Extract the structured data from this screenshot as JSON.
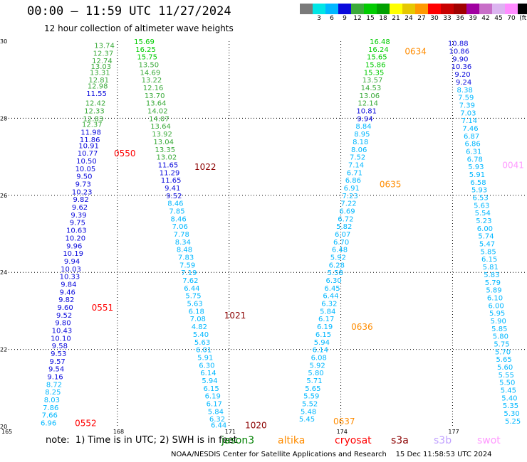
{
  "header": {
    "title": "00:00 – 11:59 UTC 11/27/2024",
    "subtitle": "12 hour collection of altimeter wave heights"
  },
  "colorbar": {
    "colors": [
      "#7a7a7a",
      "#00e5e5",
      "#00b7ff",
      "#0a0adc",
      "#3aaa3a",
      "#00cc00",
      "#00a000",
      "#ffff00",
      "#e6c800",
      "#ff9900",
      "#ff0000",
      "#c80000",
      "#a00000",
      "#a000a0",
      "#c86ec8",
      "#dcb4f0",
      "#ff8cff",
      "#000000"
    ],
    "labels": [
      "",
      "3",
      "6",
      "9",
      "12",
      "15",
      "18",
      "21",
      "24",
      "27",
      "30",
      "33",
      "36",
      "39",
      "42",
      "45",
      "70",
      "(ft)"
    ]
  },
  "notes": {
    "text": "note:  1) Time is in UTC; 2) SWH is in feet"
  },
  "satellites": [
    {
      "name": "jason3",
      "color": "#008000"
    },
    {
      "name": "altika",
      "color": "#ff8c00"
    },
    {
      "name": "cryosat",
      "color": "#ff0000"
    },
    {
      "name": "s3a",
      "color": "#8b0000"
    },
    {
      "name": "s3b",
      "color": "#c0a0ff"
    },
    {
      "name": "swot",
      "color": "#ff99ff"
    }
  ],
  "footer": {
    "text": "NOAA/NESDIS Center for Satellite Applications and Research    15 Dec 11:58:53 UTC 2024"
  },
  "chart_data": {
    "type": "scatter",
    "title": "",
    "xlabel": "",
    "ylabel": "",
    "xlim": [
      165,
      179
    ],
    "ylim": [
      20,
      30
    ],
    "x_ticks": [
      165,
      168,
      171,
      174,
      177
    ],
    "y_ticks": [
      20,
      22,
      24,
      26,
      28,
      30
    ],
    "grid": true,
    "value_color_scale": [
      {
        "max": 9,
        "color": "#00b7ff"
      },
      {
        "max": 12,
        "color": "#0a0adc"
      },
      {
        "max": 15,
        "color": "#3aaa3a"
      },
      {
        "max": 18,
        "color": "#00cc00"
      },
      {
        "max": 21,
        "color": "#00a000"
      }
    ],
    "tracks": [
      {
        "lat": [
          29.9,
          29.7,
          29.5,
          29.35,
          29.2,
          29.0,
          28.85,
          28.65,
          28.4,
          28.2,
          28.0,
          27.85,
          27.65,
          27.45,
          27.3,
          27.1,
          26.9,
          26.7,
          26.5,
          26.3,
          26.1,
          25.9,
          25.7,
          25.5,
          25.3,
          25.1,
          24.9,
          24.7,
          24.5,
          24.3,
          24.1,
          23.9,
          23.7,
          23.5,
          23.3,
          23.1,
          22.9,
          22.7,
          22.5,
          22.3,
          22.1,
          21.9,
          21.7,
          21.5,
          21.3,
          21.1,
          20.9,
          20.7,
          20.5,
          20.3,
          20.1
        ],
        "lon": [
          167.65,
          167.62,
          167.59,
          167.56,
          167.53,
          167.5,
          167.47,
          167.44,
          167.41,
          167.38,
          167.35,
          167.32,
          167.29,
          167.26,
          167.23,
          167.2,
          167.17,
          167.14,
          167.11,
          167.08,
          167.05,
          167.02,
          166.99,
          166.96,
          166.93,
          166.9,
          166.87,
          166.84,
          166.81,
          166.78,
          166.75,
          166.72,
          166.69,
          166.66,
          166.63,
          166.6,
          166.57,
          166.54,
          166.51,
          166.48,
          166.45,
          166.42,
          166.39,
          166.36,
          166.33,
          166.3,
          166.27,
          166.24,
          166.21,
          166.18,
          166.15
        ],
        "swh": [
          13.74,
          12.37,
          12.74,
          13.03,
          13.31,
          12.81,
          12.98,
          11.55,
          12.42,
          12.33,
          12.83,
          12.37,
          11.98,
          11.86,
          10.91,
          10.77,
          10.5,
          10.05,
          9.5,
          9.73,
          10.23,
          9.82,
          9.62,
          9.39,
          9.75,
          10.63,
          10.2,
          9.96,
          10.19,
          9.94,
          10.03,
          10.33,
          9.84,
          9.46,
          9.82,
          9.6,
          9.52,
          9.8,
          10.43,
          10.1,
          9.58,
          9.53,
          9.57,
          9.54,
          9.16,
          8.72,
          8.25,
          8.03,
          7.86,
          7.66,
          6.96
        ],
        "labels": [
          {
            "text": "0550",
            "lat": 27.1,
            "sat": "cryosat"
          },
          {
            "text": "0551",
            "lat": 23.1,
            "sat": "cryosat"
          },
          {
            "text": "0552",
            "lat": 20.1,
            "sat": "cryosat"
          }
        ]
      },
      {
        "lat": [
          30.0,
          29.8,
          29.6,
          29.4,
          29.2,
          29.0,
          28.8,
          28.6,
          28.4,
          28.2,
          28.0,
          27.8,
          27.6,
          27.4,
          27.2,
          27.0,
          26.8,
          26.6,
          26.4,
          26.2,
          26.0,
          25.8,
          25.6,
          25.4,
          25.2,
          25.0,
          24.8,
          24.6,
          24.4,
          24.2,
          24.0,
          23.8,
          23.6,
          23.4,
          23.2,
          23.0,
          22.8,
          22.6,
          22.4,
          22.2,
          22.0,
          21.8,
          21.6,
          21.4,
          21.2,
          21.0,
          20.8,
          20.6,
          20.4,
          20.2,
          20.05
        ],
        "lon": [
          168.72,
          168.76,
          168.8,
          168.84,
          168.88,
          168.92,
          168.96,
          169.0,
          169.04,
          169.08,
          169.12,
          169.16,
          169.2,
          169.24,
          169.28,
          169.32,
          169.36,
          169.4,
          169.44,
          169.48,
          169.52,
          169.56,
          169.6,
          169.64,
          169.68,
          169.72,
          169.76,
          169.8,
          169.84,
          169.88,
          169.92,
          169.96,
          170.0,
          170.04,
          170.08,
          170.12,
          170.16,
          170.2,
          170.24,
          170.28,
          170.32,
          170.36,
          170.4,
          170.44,
          170.48,
          170.52,
          170.56,
          170.6,
          170.64,
          170.68,
          170.72
        ],
        "swh": [
          15.69,
          16.25,
          15.75,
          13.5,
          14.69,
          13.22,
          12.16,
          13.7,
          13.64,
          14.02,
          14.07,
          13.64,
          13.92,
          13.04,
          13.35,
          13.02,
          11.65,
          11.29,
          11.65,
          9.41,
          9.52,
          8.46,
          7.85,
          8.46,
          7.06,
          7.78,
          8.34,
          8.48,
          7.83,
          7.59,
          7.19,
          7.62,
          6.44,
          5.75,
          5.63,
          6.18,
          7.08,
          4.82,
          5.4,
          5.63,
          6.01,
          5.91,
          6.3,
          6.14,
          5.94,
          6.15,
          6.19,
          6.17,
          5.84,
          6.32,
          6.44
        ],
        "labels": [
          {
            "text": "1022",
            "lat": 26.75,
            "sat": "s3a"
          },
          {
            "text": "1021",
            "lat": 22.9,
            "sat": "s3a"
          },
          {
            "text": "1020",
            "lat": 20.05,
            "sat": "s3a"
          }
        ]
      },
      {
        "lat": [
          30.0,
          29.8,
          29.6,
          29.4,
          29.2,
          29.0,
          28.8,
          28.6,
          28.4,
          28.2,
          28.0,
          27.8,
          27.6,
          27.4,
          27.2,
          27.0,
          26.8,
          26.6,
          26.4,
          26.2,
          26.0,
          25.8,
          25.6,
          25.4,
          25.2,
          25.0,
          24.8,
          24.6,
          24.4,
          24.2,
          24.0,
          23.8,
          23.6,
          23.4,
          23.2,
          23.0,
          22.8,
          22.6,
          22.4,
          22.2,
          22.0,
          21.8,
          21.6,
          21.4,
          21.2,
          21.0,
          20.8,
          20.6,
          20.4,
          20.2
        ],
        "lon": [
          175.05,
          175.01,
          174.97,
          174.93,
          174.89,
          174.85,
          174.81,
          174.77,
          174.73,
          174.69,
          174.65,
          174.61,
          174.57,
          174.53,
          174.49,
          174.45,
          174.41,
          174.37,
          174.33,
          174.29,
          174.25,
          174.21,
          174.17,
          174.13,
          174.09,
          174.05,
          174.01,
          173.97,
          173.93,
          173.89,
          173.85,
          173.81,
          173.77,
          173.73,
          173.69,
          173.65,
          173.61,
          173.57,
          173.53,
          173.49,
          173.45,
          173.41,
          173.37,
          173.33,
          173.29,
          173.25,
          173.21,
          173.17,
          173.13,
          173.09
        ],
        "swh": [
          16.48,
          16.24,
          15.65,
          15.86,
          15.35,
          13.57,
          14.53,
          13.06,
          12.14,
          10.81,
          9.94,
          8.84,
          8.95,
          8.18,
          8.06,
          7.52,
          7.14,
          6.71,
          6.86,
          6.91,
          7.23,
          7.22,
          6.69,
          6.72,
          5.82,
          6.07,
          6.7,
          6.48,
          5.92,
          6.28,
          5.58,
          6.3,
          6.45,
          6.44,
          6.32,
          5.84,
          6.17,
          6.19,
          6.15,
          5.94,
          6.14,
          6.08,
          5.92,
          5.8,
          5.71,
          5.65,
          5.59,
          5.52,
          5.48,
          5.45
        ],
        "labels": [
          {
            "text": "0634",
            "lat": 29.75,
            "sat": "altika"
          },
          {
            "text": "0635",
            "lat": 26.3,
            "sat": "altika"
          },
          {
            "text": "0636",
            "lat": 22.6,
            "sat": "altika"
          },
          {
            "text": "0637",
            "lat": 20.15,
            "sat": "altika"
          }
        ]
      },
      {
        "lat": [
          29.95,
          29.75,
          29.55,
          29.35,
          29.15,
          28.95,
          28.75,
          28.55,
          28.35,
          28.15,
          27.95,
          27.75,
          27.55,
          27.35,
          27.15,
          26.95,
          26.75,
          26.55,
          26.35,
          26.15,
          25.95,
          25.75,
          25.55,
          25.35,
          25.15,
          24.95,
          24.75,
          24.55,
          24.35,
          24.15,
          23.95,
          23.75,
          23.55,
          23.35,
          23.15,
          22.95,
          22.75,
          22.55,
          22.35,
          22.15,
          21.95,
          21.75,
          21.55,
          21.35,
          21.15,
          20.95,
          20.75,
          20.55,
          20.35,
          20.15
        ],
        "lon": [
          177.15,
          177.18,
          177.21,
          177.24,
          177.27,
          177.3,
          177.33,
          177.36,
          177.39,
          177.42,
          177.45,
          177.48,
          177.51,
          177.54,
          177.57,
          177.6,
          177.63,
          177.66,
          177.69,
          177.72,
          177.75,
          177.78,
          177.81,
          177.84,
          177.87,
          177.9,
          177.93,
          177.96,
          177.99,
          178.02,
          178.05,
          178.08,
          178.11,
          178.14,
          178.17,
          178.2,
          178.23,
          178.26,
          178.29,
          178.32,
          178.35,
          178.38,
          178.41,
          178.44,
          178.47,
          178.5,
          178.53,
          178.56,
          178.59,
          178.62
        ],
        "swh": [
          10.88,
          10.86,
          9.9,
          10.36,
          9.2,
          9.24,
          8.38,
          7.59,
          7.39,
          7.03,
          7.14,
          7.46,
          6.87,
          6.86,
          6.31,
          6.78,
          5.93,
          5.91,
          6.58,
          5.93,
          6.53,
          5.63,
          5.54,
          5.23,
          6.0,
          5.74,
          5.47,
          5.85,
          6.15,
          5.81,
          5.83,
          5.79,
          5.89,
          6.1,
          6.0,
          5.95,
          5.9,
          5.85,
          5.8,
          5.75,
          5.7,
          5.65,
          5.6,
          5.55,
          5.5,
          5.45,
          5.4,
          5.35,
          5.3,
          5.25
        ],
        "labels": [
          {
            "text": "0041",
            "lat": 26.8,
            "sat": "swot"
          }
        ]
      }
    ]
  }
}
